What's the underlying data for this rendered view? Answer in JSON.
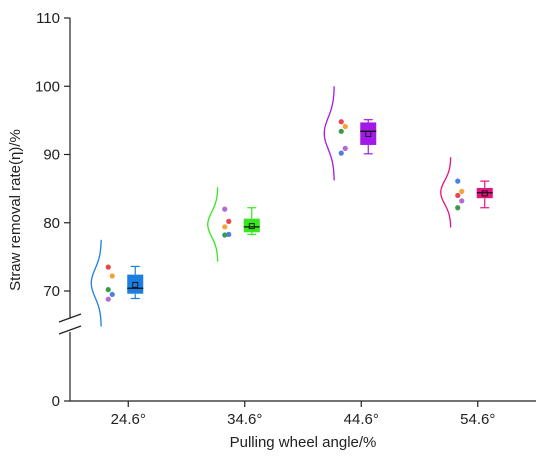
{
  "chart_data": {
    "type": "box-violin",
    "title": "",
    "xlabel": "Pulling wheel angle/%",
    "ylabel": "Straw removal rate(η)/%",
    "categories": [
      "24.6°",
      "34.6°",
      "44.6°",
      "54.6°"
    ],
    "y_ticks": [
      0,
      70,
      80,
      90,
      100,
      110
    ],
    "y_tick_labels": [
      "0",
      "70",
      "80",
      "90",
      "100",
      "110"
    ],
    "y_axis_break": true,
    "grid": false,
    "legend": "none",
    "series": [
      {
        "category": "24.6°",
        "color": "#1a7fe0",
        "box": {
          "whisker_low": 68.9,
          "q1": 69.6,
          "median": 70.4,
          "q3": 72.4,
          "whisker_high": 73.6
        },
        "mean": 70.9,
        "curve_range": [
          64.8,
          77.5
        ],
        "points": [
          {
            "value": 73.5,
            "color": "#e8454f"
          },
          {
            "value": 72.2,
            "color": "#f2a33a"
          },
          {
            "value": 70.2,
            "color": "#3a9a4e"
          },
          {
            "value": 69.5,
            "color": "#4f7fe0"
          },
          {
            "value": 68.8,
            "color": "#b26ad6"
          }
        ]
      },
      {
        "category": "34.6°",
        "color": "#37e61f",
        "box": {
          "whisker_low": 78.3,
          "q1": 78.6,
          "median": 79.4,
          "q3": 80.6,
          "whisker_high": 82.2
        },
        "mean": 79.5,
        "curve_range": [
          74.3,
          85.2
        ],
        "points": [
          {
            "value": 82.0,
            "color": "#b26ad6"
          },
          {
            "value": 80.2,
            "color": "#e8454f"
          },
          {
            "value": 79.4,
            "color": "#f2a33a"
          },
          {
            "value": 78.3,
            "color": "#4f7fe0"
          },
          {
            "value": 78.2,
            "color": "#3a9a4e"
          }
        ]
      },
      {
        "category": "44.6°",
        "color": "#a219e8",
        "box": {
          "whisker_low": 90.1,
          "q1": 91.4,
          "median": 93.4,
          "q3": 94.7,
          "whisker_high": 95.1
        },
        "mean": 93.0,
        "curve_range": [
          86.2,
          100.0
        ],
        "points": [
          {
            "value": 94.8,
            "color": "#e8454f"
          },
          {
            "value": 94.1,
            "color": "#f2a33a"
          },
          {
            "value": 93.4,
            "color": "#3a9a4e"
          },
          {
            "value": 90.9,
            "color": "#b26ad6"
          },
          {
            "value": 90.2,
            "color": "#4f7fe0"
          }
        ]
      },
      {
        "category": "54.6°",
        "color": "#e3157d",
        "box": {
          "whisker_low": 82.2,
          "q1": 83.6,
          "median": 84.4,
          "q3": 85.1,
          "whisker_high": 86.1
        },
        "mean": 84.3,
        "curve_range": [
          79.3,
          89.6
        ],
        "points": [
          {
            "value": 86.1,
            "color": "#4f7fe0"
          },
          {
            "value": 84.6,
            "color": "#f2a33a"
          },
          {
            "value": 84.0,
            "color": "#e8454f"
          },
          {
            "value": 83.2,
            "color": "#b26ad6"
          },
          {
            "value": 82.2,
            "color": "#3a9a4e"
          }
        ]
      }
    ]
  }
}
